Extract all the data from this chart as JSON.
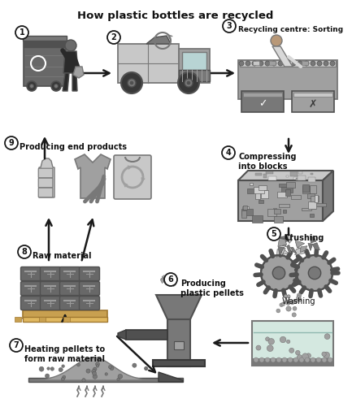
{
  "title": "How plastic bottles are recycled",
  "title_fontsize": 9.5,
  "title_fontweight": "bold",
  "bg_color": "#ffffff",
  "steps": [
    {
      "num": "1",
      "label": ""
    },
    {
      "num": "2",
      "label": ""
    },
    {
      "num": "3",
      "label": "Recycling centre: Sorting"
    },
    {
      "num": "4",
      "label": "Compressing\ninto blocks"
    },
    {
      "num": "5",
      "label": "Crushing"
    },
    {
      "num": "6",
      "label": "Producing\nplastic pellets"
    },
    {
      "num": "7",
      "label": "Heating pellets to\nform raw material"
    },
    {
      "num": "8",
      "label": "Raw material"
    },
    {
      "num": "9",
      "label": "Producing end products"
    }
  ],
  "arrow_color": "#1a1a1a",
  "text_color": "#111111",
  "gray1": "#c8c8c8",
  "gray2": "#a0a0a0",
  "gray3": "#787878",
  "gray4": "#505050",
  "gray5": "#383838"
}
